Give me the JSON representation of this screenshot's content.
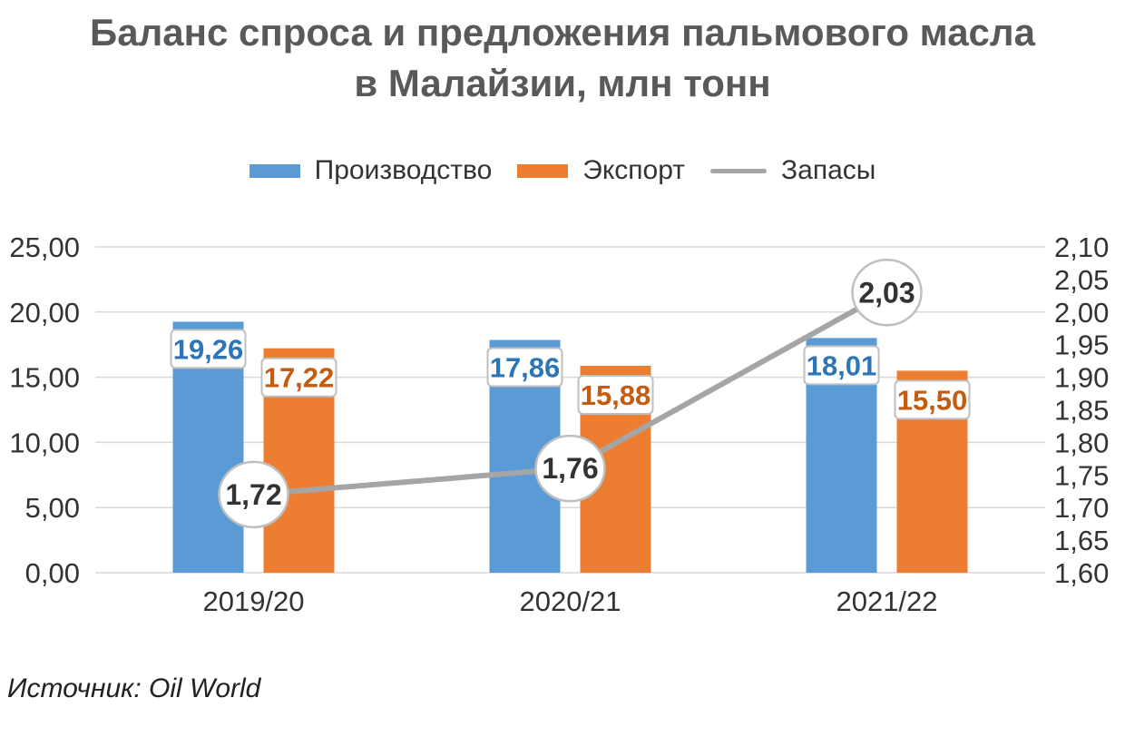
{
  "title": [
    "Баланс спроса и предложения пальмового масла",
    "в Малайзии, млн тонн"
  ],
  "source": "Источник: Oil World",
  "colors": {
    "production": "#5b9bd5",
    "export": "#ed7d31",
    "stocks": "#a5a5a5",
    "production_label": "#2e75b6",
    "export_label": "#c55a11",
    "stocks_label": "#333333",
    "grid": "#d9d9d9",
    "axis_text": "#333333"
  },
  "chart_data": {
    "type": "bar",
    "categories": [
      "2019/20",
      "2020/21",
      "2021/22"
    ],
    "series": [
      {
        "name": "Производство",
        "type": "bar",
        "axis": "left",
        "values": [
          19.26,
          17.86,
          18.01
        ],
        "labels": [
          "19,26",
          "17,86",
          "18,01"
        ]
      },
      {
        "name": "Экспорт",
        "type": "bar",
        "axis": "left",
        "values": [
          17.22,
          15.88,
          15.5
        ],
        "labels": [
          "17,22",
          "15,88",
          "15,50"
        ]
      },
      {
        "name": "Запасы",
        "type": "line",
        "axis": "right",
        "values": [
          1.72,
          1.76,
          2.03
        ],
        "labels": [
          "1,72",
          "1,76",
          "2,03"
        ]
      }
    ],
    "y_left": {
      "min": 0,
      "max": 25,
      "ticks": [
        "0,00",
        "5,00",
        "10,00",
        "15,00",
        "20,00",
        "25,00"
      ]
    },
    "y_right": {
      "min": 1.6,
      "max": 2.1,
      "ticks": [
        "1,60",
        "1,65",
        "1,70",
        "1,75",
        "1,80",
        "1,85",
        "1,90",
        "1,95",
        "2,00",
        "2,05",
        "2,10"
      ]
    },
    "grid": true,
    "legend_position": "top"
  }
}
